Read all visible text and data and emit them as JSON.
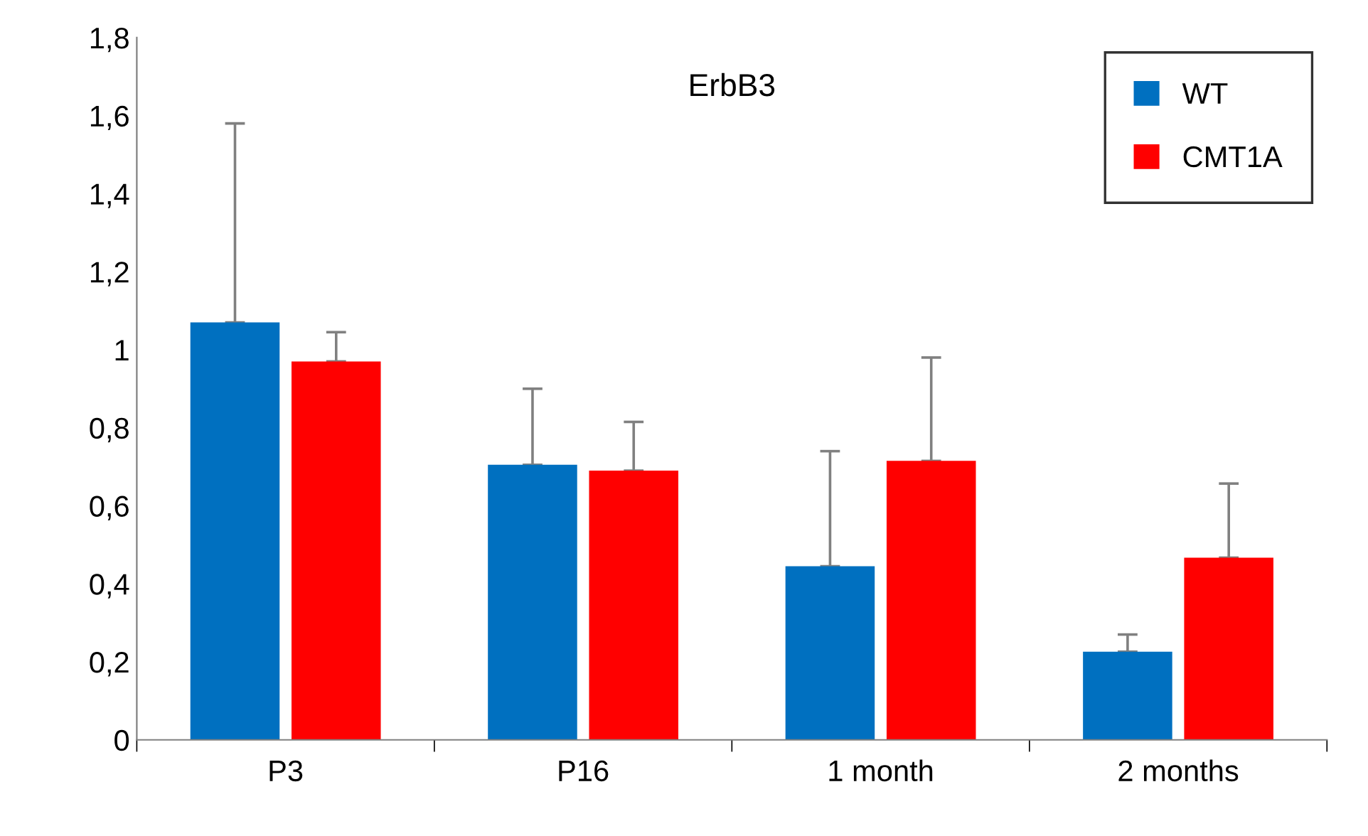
{
  "chart_data": {
    "type": "bar",
    "title": "ErbB3",
    "categories": [
      "P3",
      "P16",
      "1 month",
      "2 months"
    ],
    "series": [
      {
        "name": "WT",
        "color": "#0070c0",
        "values": [
          1.07,
          0.705,
          0.445,
          0.226
        ],
        "errors": [
          [
            1.07,
            1.58
          ],
          [
            0.705,
            0.9
          ],
          [
            0.445,
            0.74
          ],
          [
            0.226,
            0.27
          ]
        ]
      },
      {
        "name": "CMT1A",
        "color": "#ff0000",
        "values": [
          0.97,
          0.69,
          0.715,
          0.467
        ],
        "errors": [
          [
            0.97,
            1.045
          ],
          [
            0.69,
            0.815
          ],
          [
            0.715,
            0.98
          ],
          [
            0.467,
            0.657
          ]
        ]
      }
    ],
    "ylim": [
      0,
      1.8
    ],
    "yticks": [
      0,
      {
        "value": 0.2,
        "label": "0,2"
      },
      {
        "value": 0.4,
        "label": "0,4"
      },
      {
        "value": 0.6,
        "label": "0,6"
      },
      {
        "value": 0.8,
        "label": "0,8"
      },
      1,
      {
        "value": 1.2,
        "label": "1,2"
      },
      {
        "value": 1.4,
        "label": "1,4"
      },
      {
        "value": 1.6,
        "label": "1,6"
      },
      {
        "value": 1.8,
        "label": "1,8"
      }
    ],
    "grid": false,
    "legend": "top right"
  }
}
